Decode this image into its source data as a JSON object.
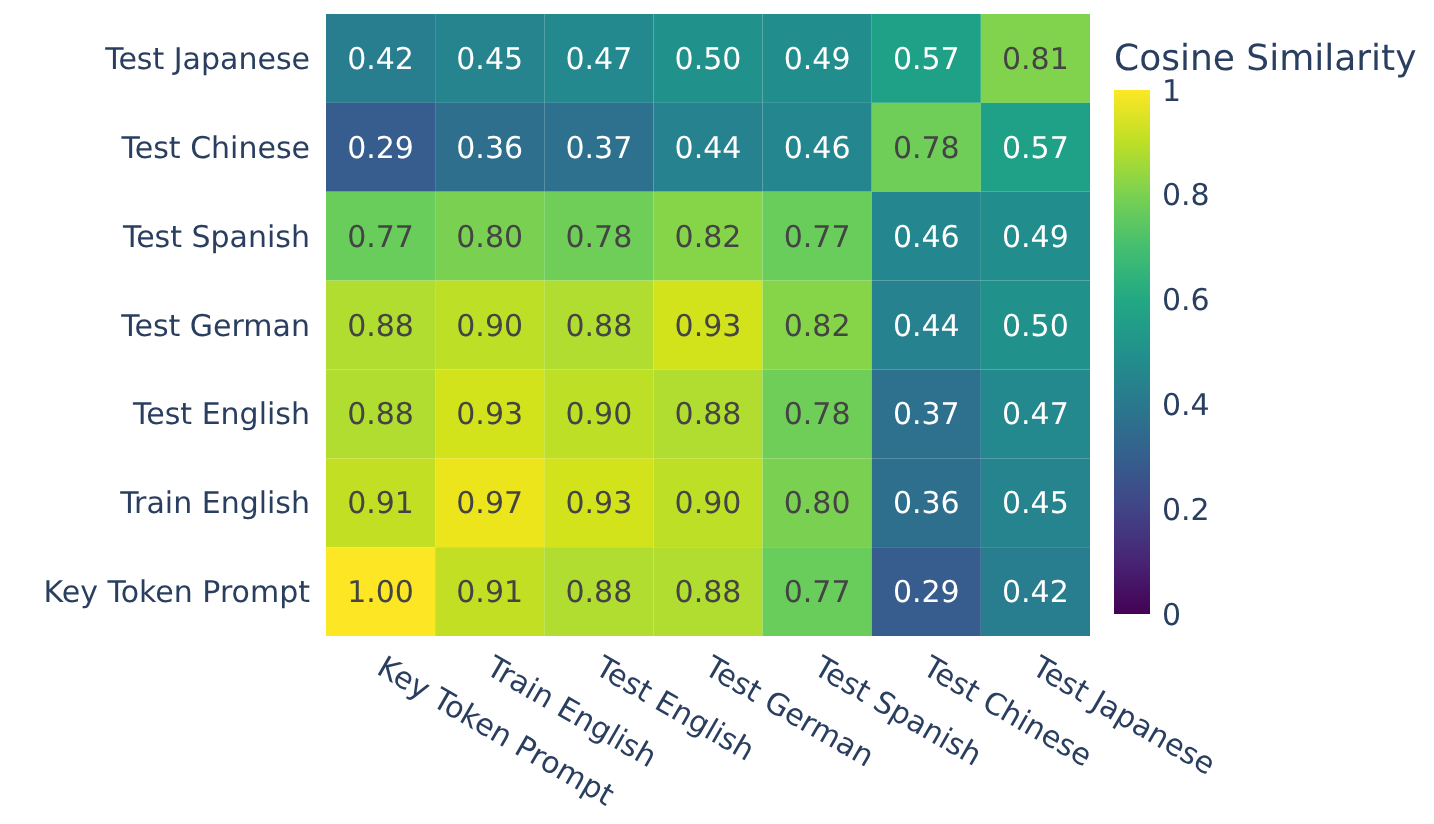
{
  "chart_data": {
    "type": "heatmap",
    "clabel": "Cosine Similarity",
    "categories": [
      "Key Token Prompt",
      "Train English",
      "Test English",
      "Test German",
      "Test Spanish",
      "Test Chinese",
      "Test Japanese"
    ],
    "y_categories": [
      "Test Japanese",
      "Test Chinese",
      "Test Spanish",
      "Test German",
      "Test English",
      "Train English",
      "Key Token Prompt"
    ],
    "cells": [
      [
        0.42,
        0.45,
        0.47,
        0.5,
        0.49,
        0.57,
        0.81
      ],
      [
        0.29,
        0.36,
        0.37,
        0.44,
        0.46,
        0.78,
        0.57
      ],
      [
        0.77,
        0.8,
        0.78,
        0.82,
        0.77,
        0.46,
        0.49
      ],
      [
        0.88,
        0.9,
        0.88,
        0.93,
        0.82,
        0.44,
        0.5
      ],
      [
        0.88,
        0.93,
        0.9,
        0.88,
        0.78,
        0.37,
        0.47
      ],
      [
        0.91,
        0.97,
        0.93,
        0.9,
        0.8,
        0.36,
        0.45
      ],
      [
        1.0,
        0.91,
        0.88,
        0.88,
        0.77,
        0.29,
        0.42
      ]
    ],
    "cell_labels": [
      [
        "0.42",
        "0.45",
        "0.47",
        "0.50",
        "0.49",
        "0.57",
        "0.81"
      ],
      [
        "0.29",
        "0.36",
        "0.37",
        "0.44",
        "0.46",
        "0.78",
        "0.57"
      ],
      [
        "0.77",
        "0.80",
        "0.78",
        "0.82",
        "0.77",
        "0.46",
        "0.49"
      ],
      [
        "0.88",
        "0.90",
        "0.88",
        "0.93",
        "0.82",
        "0.44",
        "0.50"
      ],
      [
        "0.88",
        "0.93",
        "0.90",
        "0.88",
        "0.78",
        "0.37",
        "0.47"
      ],
      [
        "0.91",
        "0.97",
        "0.93",
        "0.90",
        "0.80",
        "0.36",
        "0.45"
      ],
      [
        "1.00",
        "0.91",
        "0.88",
        "0.88",
        "0.77",
        "0.29",
        "0.42"
      ]
    ],
    "clim": [
      0,
      1
    ],
    "cticks": [
      0,
      0.2,
      0.4,
      0.6,
      0.8,
      1
    ]
  }
}
